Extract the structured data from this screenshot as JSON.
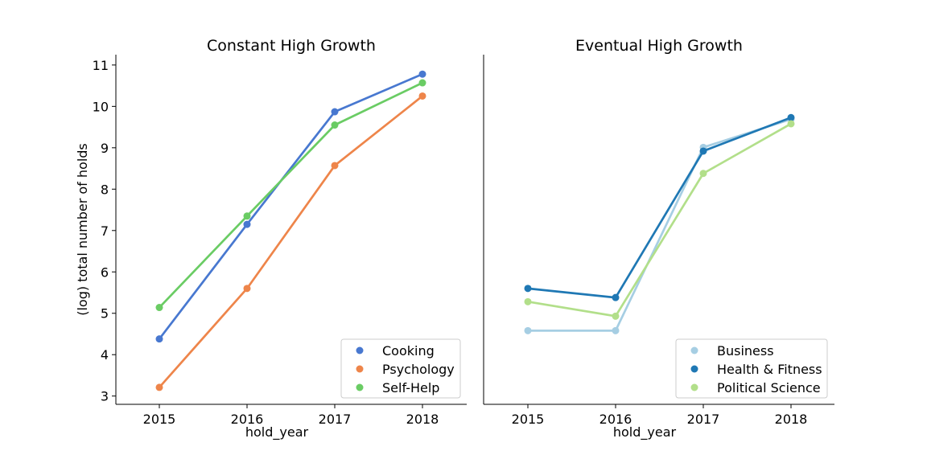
{
  "chart_data": [
    {
      "type": "line",
      "title": "Constant High Growth",
      "xlabel": "hold_year",
      "ylabel": "(log) total number of holds",
      "categories": [
        "2015",
        "2016",
        "2017",
        "2018"
      ],
      "ylim": [
        2.8,
        11.25
      ],
      "yticks": [
        3,
        4,
        5,
        6,
        7,
        8,
        9,
        10,
        11
      ],
      "legend_position": "lower-right",
      "series": [
        {
          "name": "Cooking",
          "color": "#4878d0",
          "values": [
            4.38,
            7.15,
            9.87,
            10.78
          ]
        },
        {
          "name": "Psychology",
          "color": "#ee854a",
          "values": [
            3.21,
            5.6,
            8.57,
            10.25
          ]
        },
        {
          "name": "Self-Help",
          "color": "#6acc64",
          "values": [
            5.14,
            7.35,
            9.55,
            10.57
          ]
        }
      ]
    },
    {
      "type": "line",
      "title": "Eventual High Growth",
      "xlabel": "hold_year",
      "ylabel": "",
      "categories": [
        "2015",
        "2016",
        "2017",
        "2018"
      ],
      "ylim": [
        2.8,
        11.25
      ],
      "yticks": [],
      "legend_position": "lower-right",
      "series": [
        {
          "name": "Business",
          "color": "#a6cee3",
          "values": [
            4.58,
            4.58,
            9.01,
            9.69
          ]
        },
        {
          "name": "Health & Fitness",
          "color": "#1f78b4",
          "values": [
            5.6,
            5.38,
            8.92,
            9.73
          ]
        },
        {
          "name": "Political Science",
          "color": "#b2df8a",
          "values": [
            5.28,
            4.93,
            8.38,
            9.58
          ]
        }
      ]
    }
  ]
}
